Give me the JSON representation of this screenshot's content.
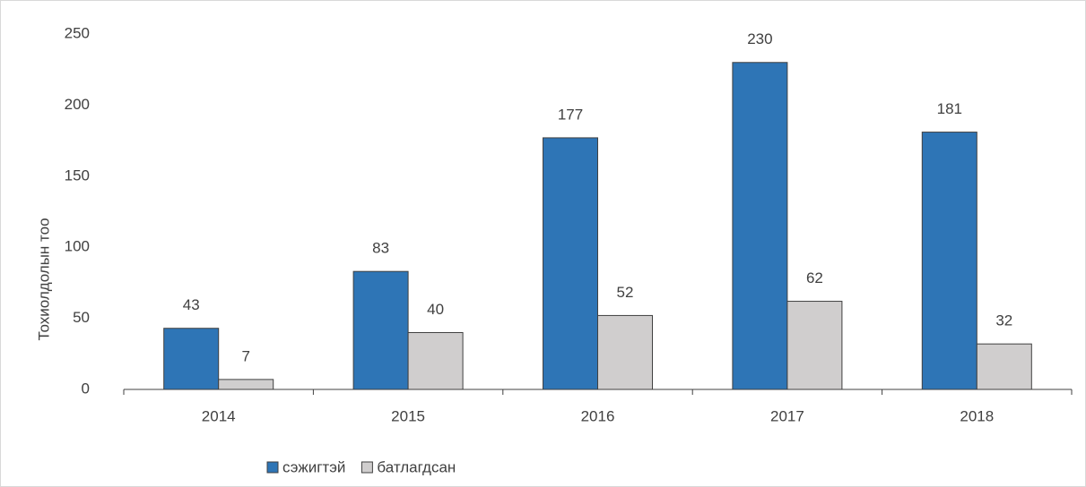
{
  "chart_data": {
    "type": "bar",
    "y_label": "Тохиолдолын тоо",
    "categories": [
      "2014",
      "2015",
      "2016",
      "2017",
      "2018"
    ],
    "series": [
      {
        "name": "сэжигтэй",
        "color": "#2e75b6",
        "values": [
          43,
          83,
          177,
          230,
          181
        ]
      },
      {
        "name": "батлагдсан",
        "color": "#d0cece",
        "values": [
          7,
          40,
          52,
          62,
          32
        ]
      }
    ],
    "ylim": [
      0,
      250
    ],
    "yticks": [
      0,
      50,
      100,
      150,
      200,
      250
    ],
    "grid": false,
    "legend": "bottom"
  }
}
